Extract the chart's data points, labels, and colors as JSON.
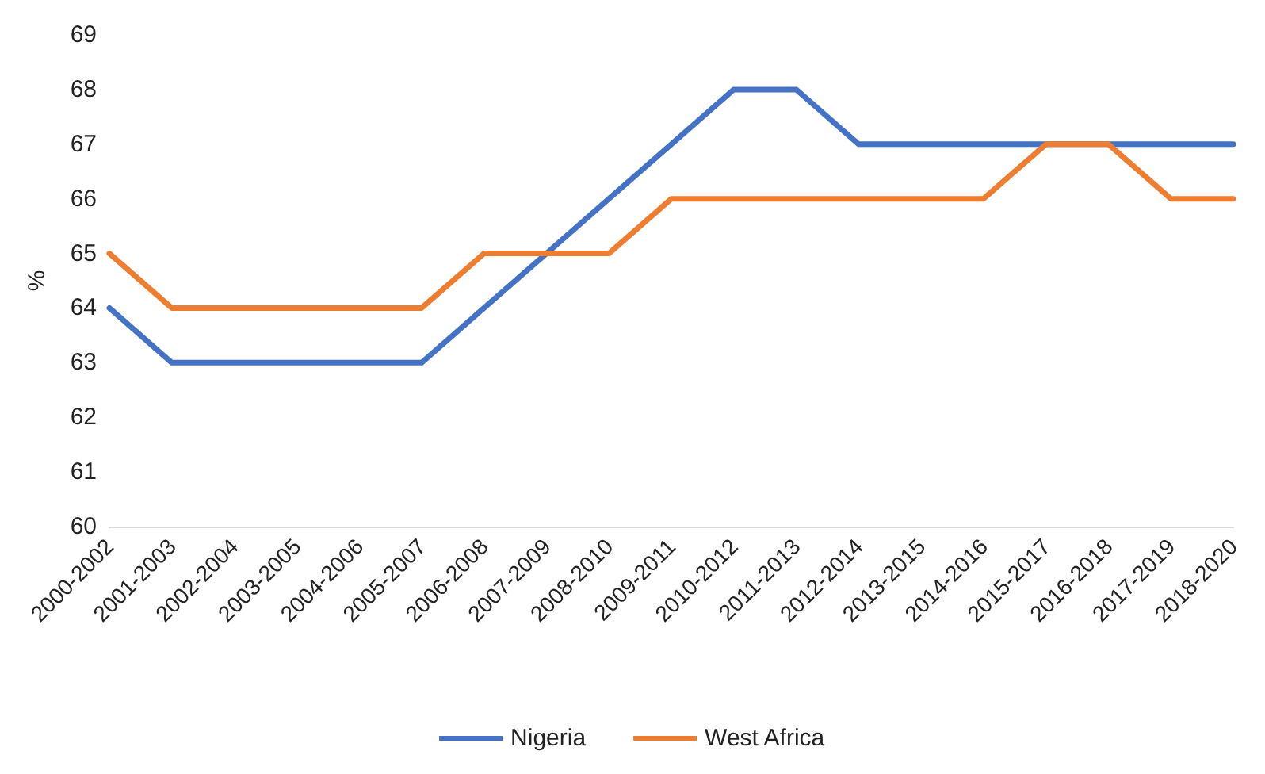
{
  "chart_data": {
    "type": "line",
    "ylabel": "%",
    "categories": [
      "2000-2002",
      "2001-2003",
      "2002-2004",
      "2003-2005",
      "2004-2006",
      "2005-2007",
      "2006-2008",
      "2007-2009",
      "2008-2010",
      "2009-2011",
      "2010-2012",
      "2011-2013",
      "2012-2014",
      "2013-2015",
      "2014-2016",
      "2015-2017",
      "2016-2018",
      "2017-2019",
      "2018-2020"
    ],
    "series": [
      {
        "name": "Nigeria",
        "color": "#4472c4",
        "values": [
          64,
          63,
          63,
          63,
          63,
          63,
          64,
          65,
          66,
          67,
          68,
          68,
          67,
          67,
          67,
          67,
          67,
          67,
          67
        ]
      },
      {
        "name": "West Africa",
        "color": "#ed7d31",
        "values": [
          65,
          64,
          64,
          64,
          64,
          64,
          65,
          65,
          65,
          66,
          66,
          66,
          66,
          66,
          66,
          67,
          67,
          66,
          66
        ]
      }
    ],
    "ylim": [
      60,
      69
    ],
    "yticks": [
      60,
      61,
      62,
      63,
      64,
      65,
      66,
      67,
      68,
      69
    ],
    "grid": false,
    "legend": "bottom",
    "marker": "none",
    "line_style": "solid"
  }
}
